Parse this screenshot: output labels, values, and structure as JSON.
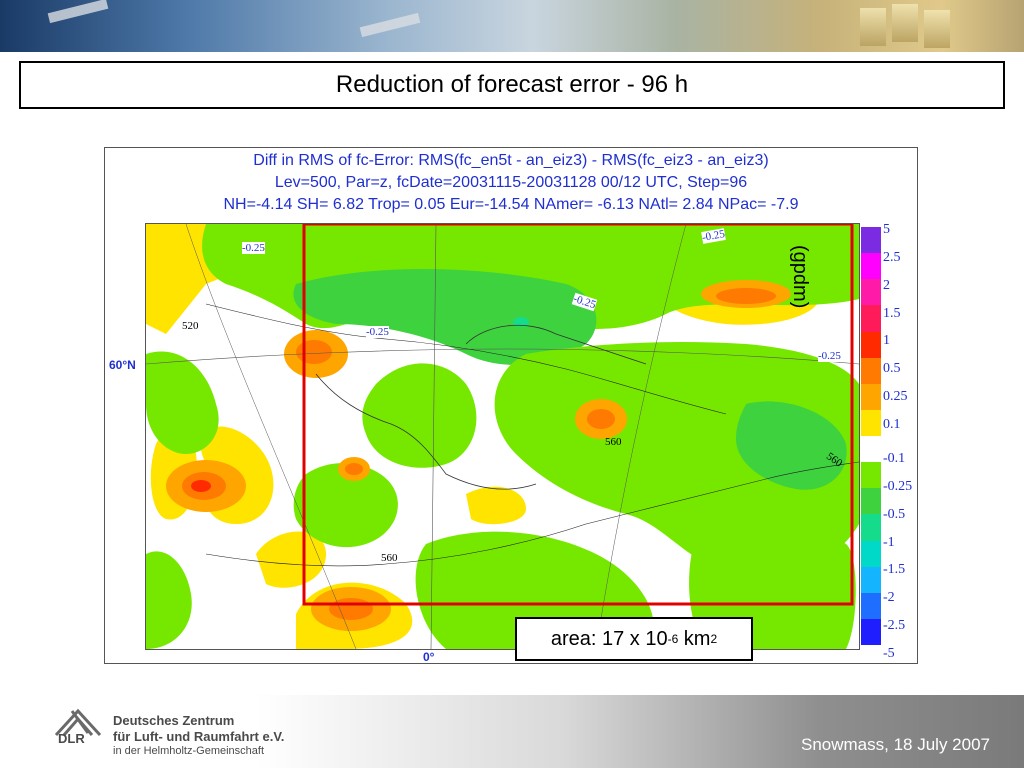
{
  "slide": {
    "title": "Reduction of forecast error - 96 h",
    "area_label": "area: 17 x 10",
    "area_exp": "-6",
    "area_unit": " km",
    "area_unit_exp": "2"
  },
  "figure": {
    "title_line1": "Diff in RMS of fc-Error: RMS(fc_en5t - an_eiz3) - RMS(fc_eiz3 - an_eiz3)",
    "title_line2": "Lev=500, Par=z, fcDate=20031115-20031128 00/12 UTC, Step=96",
    "title_line3": "NH=-4.14 SH= 6.82 Trop= 0.05 Eur=-14.54 NAmer= -6.13 NAtl= 2.84 NPac= -7.9",
    "lat_label": "60°N",
    "lon_label": "0°",
    "unit": "(gpdm)",
    "contour_labels": [
      "-0.25",
      "-0.25",
      "-0.25",
      "-0.25",
      "-0.25",
      "520",
      "560",
      "560",
      "560"
    ],
    "colorbar": {
      "labels": [
        "5",
        "2.5",
        "2",
        "1.5",
        "1",
        "0.5",
        "0.25",
        "0.1",
        "-0.1",
        "-0.25",
        "-0.5",
        "-1",
        "-1.5",
        "-2",
        "-2.5",
        "-5"
      ],
      "colors": [
        "#7b2be2",
        "#ff00ff",
        "#ff1aa8",
        "#ff1a5a",
        "#ff2a00",
        "#ff7a00",
        "#ffa500",
        "#ffe400",
        "#ffffff",
        "#76e800",
        "#3ed23e",
        "#14dc8a",
        "#00d8c8",
        "#14b4ff",
        "#1e6eff",
        "#1e1eff"
      ]
    }
  },
  "footer": {
    "dlr": "DLR",
    "org_line1": "Deutsches Zentrum",
    "org_line2": "für Luft- und Raumfahrt e.V.",
    "org_line3": "in der Helmholtz-Gemeinschaft",
    "date": "Snowmass, 18 July 2007"
  }
}
